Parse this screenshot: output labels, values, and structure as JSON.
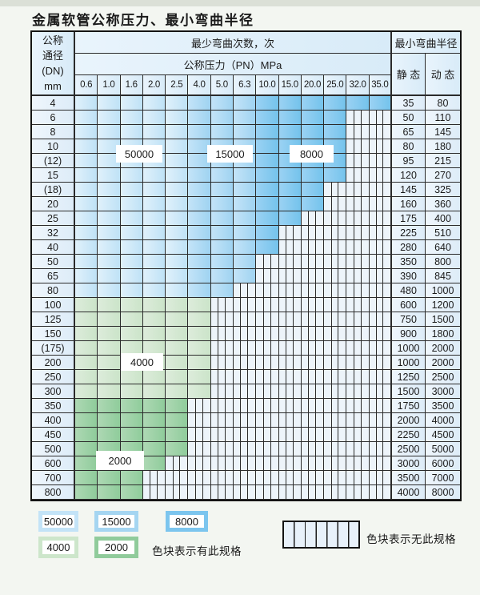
{
  "page": {
    "title": "金属软管公称压力、最小弯曲半径"
  },
  "table": {
    "header": {
      "dn_lines": [
        "公称",
        "通径",
        "(DN)",
        "mm"
      ],
      "cycles_label": "最少弯曲次数，次",
      "pressure_label": "公称压力（PN）MPa",
      "radius_label": "最小弯曲半径",
      "static_label": "静 态",
      "dynamic_label": "动 态",
      "pressures": [
        "0.6",
        "1.0",
        "1.6",
        "2.0",
        "2.5",
        "4.0",
        "5.0",
        "6.3",
        "10.0",
        "15.0",
        "20.0",
        "25.0",
        "32.0",
        "35.0"
      ]
    },
    "blue_column_zones": {
      "cycles_50000": [
        1,
        5
      ],
      "cycles_15000": [
        6,
        8
      ],
      "cycles_8000": [
        9,
        14
      ]
    },
    "rows": [
      {
        "dn": "4",
        "zone": "blue",
        "colored": 14,
        "static": "35",
        "dynamic": "80"
      },
      {
        "dn": "6",
        "zone": "blue",
        "colored": 12,
        "static": "50",
        "dynamic": "110"
      },
      {
        "dn": "8",
        "zone": "blue",
        "colored": 12,
        "static": "65",
        "dynamic": "145"
      },
      {
        "dn": "10",
        "zone": "blue",
        "colored": 12,
        "static": "80",
        "dynamic": "180"
      },
      {
        "dn": "(12)",
        "zone": "blue",
        "colored": 12,
        "static": "95",
        "dynamic": "215"
      },
      {
        "dn": "15",
        "zone": "blue",
        "colored": 12,
        "static": "120",
        "dynamic": "270"
      },
      {
        "dn": "(18)",
        "zone": "blue",
        "colored": 11,
        "static": "145",
        "dynamic": "325"
      },
      {
        "dn": "20",
        "zone": "blue",
        "colored": 11,
        "static": "160",
        "dynamic": "360"
      },
      {
        "dn": "25",
        "zone": "blue",
        "colored": 10,
        "static": "175",
        "dynamic": "400"
      },
      {
        "dn": "32",
        "zone": "blue",
        "colored": 9,
        "static": "225",
        "dynamic": "510"
      },
      {
        "dn": "40",
        "zone": "blue",
        "colored": 9,
        "static": "280",
        "dynamic": "640"
      },
      {
        "dn": "50",
        "zone": "blue",
        "colored": 8,
        "static": "350",
        "dynamic": "800"
      },
      {
        "dn": "65",
        "zone": "blue",
        "colored": 8,
        "static": "390",
        "dynamic": "845"
      },
      {
        "dn": "80",
        "zone": "blue",
        "colored": 7,
        "static": "480",
        "dynamic": "1000"
      },
      {
        "dn": "100",
        "zone": "green_4000",
        "colored": 6,
        "static": "600",
        "dynamic": "1200"
      },
      {
        "dn": "125",
        "zone": "green_4000",
        "colored": 6,
        "static": "750",
        "dynamic": "1500"
      },
      {
        "dn": "150",
        "zone": "green_4000",
        "colored": 6,
        "static": "900",
        "dynamic": "1800"
      },
      {
        "dn": "(175)",
        "zone": "green_4000",
        "colored": 6,
        "static": "1000",
        "dynamic": "2000"
      },
      {
        "dn": "200",
        "zone": "green_4000",
        "colored": 6,
        "static": "1000",
        "dynamic": "2000"
      },
      {
        "dn": "250",
        "zone": "green_4000",
        "colored": 6,
        "static": "1250",
        "dynamic": "2500"
      },
      {
        "dn": "300",
        "zone": "green_4000",
        "colored": 6,
        "static": "1500",
        "dynamic": "3000"
      },
      {
        "dn": "350",
        "zone": "green_2000",
        "colored": 5,
        "static": "1750",
        "dynamic": "3500"
      },
      {
        "dn": "400",
        "zone": "green_2000",
        "colored": 5,
        "static": "2000",
        "dynamic": "4000"
      },
      {
        "dn": "450",
        "zone": "green_2000",
        "colored": 5,
        "static": "2250",
        "dynamic": "4500"
      },
      {
        "dn": "500",
        "zone": "green_2000",
        "colored": 5,
        "static": "2500",
        "dynamic": "5000"
      },
      {
        "dn": "600",
        "zone": "green_2000",
        "colored": 4,
        "static": "3000",
        "dynamic": "6000"
      },
      {
        "dn": "700",
        "zone": "green_2000",
        "colored": 3,
        "static": "3500",
        "dynamic": "7000"
      },
      {
        "dn": "800",
        "zone": "green_2000",
        "colored": 3,
        "static": "4000",
        "dynamic": "8000"
      }
    ],
    "overlay_labels": [
      "50000",
      "15000",
      "8000",
      "4000",
      "2000"
    ]
  },
  "legend": {
    "has_spec_label": "色块表示有此规格",
    "no_spec_label": "色块表示无此规格",
    "swatches": [
      {
        "text": "50000",
        "color": "#c3e3f7"
      },
      {
        "text": "15000",
        "color": "#a5d5f1"
      },
      {
        "text": "8000",
        "color": "#7cc5ee"
      },
      {
        "text": "4000",
        "color": "#cde6cb"
      },
      {
        "text": "2000",
        "color": "#90cb9b"
      }
    ]
  },
  "colors": {
    "cycles_50000": "#bfe2f6",
    "cycles_15000": "#9fd3f1",
    "cycles_8000": "#74c3ec",
    "green_4000": "#cbe4c9",
    "green_2000": "#8fcc9b",
    "hatch_bg": "#edf4fa",
    "grid_line": "#2b2b2b"
  }
}
